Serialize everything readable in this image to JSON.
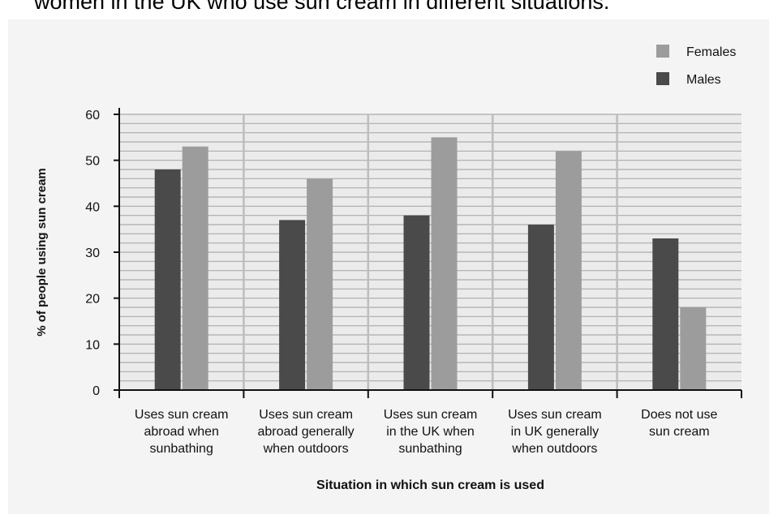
{
  "caption": "women in the UK who use sun cream in different situations.",
  "chart_data": {
    "type": "bar",
    "categories": [
      [
        "Uses sun cream",
        "abroad when",
        "sunbathing"
      ],
      [
        "Uses sun cream",
        "abroad generally",
        "when outdoors"
      ],
      [
        "Uses sun cream",
        "in the UK when",
        "sunbathing"
      ],
      [
        "Uses sun cream",
        "in UK generally",
        "when outdoors"
      ],
      [
        "Does not use",
        "sun cream"
      ]
    ],
    "series": [
      {
        "name": "Males",
        "color": "#4a4a4a",
        "values": [
          48,
          37,
          38,
          36,
          33
        ]
      },
      {
        "name": "Females",
        "color": "#9c9c9c",
        "values": [
          53,
          46,
          55,
          52,
          18
        ]
      }
    ],
    "legend_order": [
      "Females",
      "Males"
    ],
    "legend_position": "top-right",
    "xlabel": "Situation in which sun cream is used",
    "ylabel": "% of people using sun cream",
    "ylim": [
      0,
      60
    ],
    "yticks": [
      0,
      10,
      20,
      30,
      40,
      50,
      60
    ],
    "minor_grid_step": 2,
    "grid": true
  }
}
